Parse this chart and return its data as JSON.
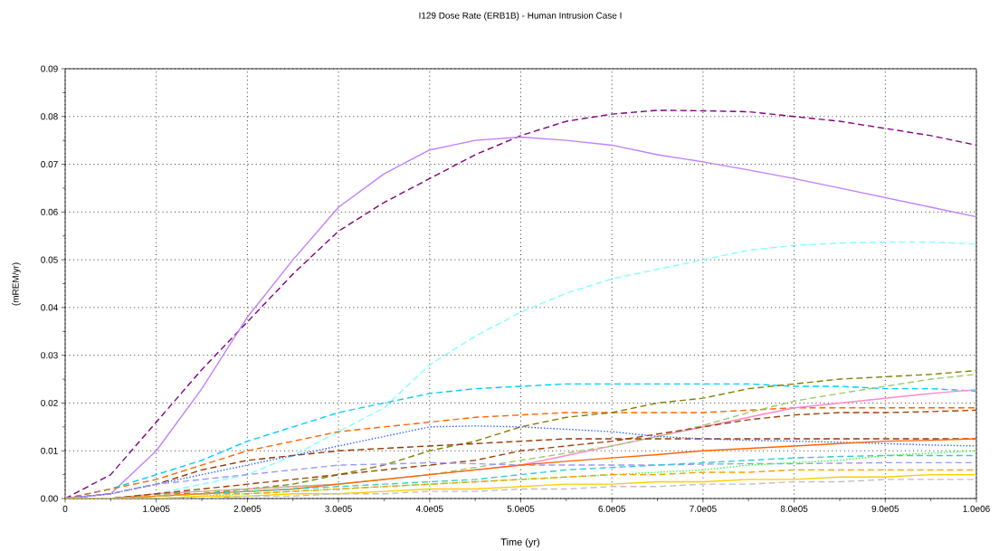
{
  "chart_data": {
    "type": "line",
    "title": "I129 Dose Rate (ERB1B)  -  Human Intrusion Case I",
    "xlabel": "Time (yr)",
    "ylabel": "(mREM/yr)",
    "x": [
      0,
      50000,
      100000,
      150000,
      200000,
      250000,
      300000,
      350000,
      400000,
      450000,
      500000,
      550000,
      600000,
      650000,
      700000,
      750000,
      800000,
      850000,
      900000,
      950000,
      1000000
    ],
    "xlim": [
      0,
      1000000
    ],
    "ylim": [
      0,
      0.09
    ],
    "xticks": [
      0,
      {
        "value": 100000,
        "label": "1.0e05"
      },
      {
        "value": 200000,
        "label": "2.0e05"
      },
      {
        "value": 300000,
        "label": "3.0e05"
      },
      {
        "value": 400000,
        "label": "4.0e05"
      },
      {
        "value": 500000,
        "label": "5.0e05"
      },
      {
        "value": 600000,
        "label": "6.0e05"
      },
      {
        "value": 700000,
        "label": "7.0e05"
      },
      {
        "value": 800000,
        "label": "8.0e05"
      },
      {
        "value": 900000,
        "label": "9.0e05"
      },
      {
        "value": 1000000,
        "label": "1.0e06"
      }
    ],
    "yticks": [
      {
        "value": 0,
        "label": "0.00"
      },
      {
        "value": 0.01,
        "label": "0.01"
      },
      {
        "value": 0.02,
        "label": "0.02"
      },
      {
        "value": 0.03,
        "label": "0.03"
      },
      {
        "value": 0.04,
        "label": "0.04"
      },
      {
        "value": 0.05,
        "label": "0.05"
      },
      {
        "value": 0.06,
        "label": "0.06"
      },
      {
        "value": 0.07,
        "label": "0.07"
      },
      {
        "value": 0.08,
        "label": "0.08"
      },
      {
        "value": 0.09,
        "label": "0.09"
      }
    ],
    "grid": true,
    "marker": "none",
    "series": [
      {
        "color": "#800080",
        "line_style": "dashed",
        "values": [
          0,
          0.005,
          0.016,
          0.027,
          0.037,
          0.047,
          0.056,
          0.062,
          0.067,
          0.072,
          0.076,
          0.079,
          0.0805,
          0.0813,
          0.0812,
          0.081,
          0.08,
          0.079,
          0.0775,
          0.076,
          0.074
        ]
      },
      {
        "color": "#bf80ff",
        "line_style": "solid",
        "values": [
          0,
          0.001,
          0.01,
          0.023,
          0.038,
          0.05,
          0.061,
          0.068,
          0.073,
          0.075,
          0.0757,
          0.075,
          0.074,
          0.072,
          0.0705,
          0.0688,
          0.067,
          0.065,
          0.063,
          0.061,
          0.059
        ]
      },
      {
        "color": "#80ffff",
        "line_style": "dashed",
        "values": [
          0,
          0,
          0.001,
          0.003,
          0.005,
          0.009,
          0.014,
          0.019,
          0.028,
          0.034,
          0.039,
          0.043,
          0.046,
          0.048,
          0.05,
          0.052,
          0.053,
          0.0535,
          0.0537,
          0.0537,
          0.0533
        ]
      },
      {
        "color": "#00ccff",
        "line_style": "dashed",
        "values": [
          0,
          0.002,
          0.005,
          0.008,
          0.012,
          0.015,
          0.018,
          0.02,
          0.022,
          0.023,
          0.0235,
          0.024,
          0.024,
          0.024,
          0.024,
          0.024,
          0.0235,
          0.0235,
          0.023,
          0.023,
          0.0225
        ]
      },
      {
        "color": "#ff6600",
        "line_style": "dashed",
        "values": [
          0,
          0.002,
          0.004,
          0.007,
          0.01,
          0.012,
          0.014,
          0.015,
          0.016,
          0.017,
          0.0175,
          0.018,
          0.018,
          0.018,
          0.018,
          0.0185,
          0.019,
          0.019,
          0.019,
          0.019,
          0.019
        ]
      },
      {
        "color": "#808000",
        "line_style": "dashed",
        "values": [
          0,
          0,
          0.001,
          0.001,
          0.002,
          0.003,
          0.005,
          0.007,
          0.01,
          0.012,
          0.015,
          0.017,
          0.018,
          0.02,
          0.021,
          0.023,
          0.024,
          0.025,
          0.0255,
          0.026,
          0.0268
        ]
      },
      {
        "color": "#ff88cc",
        "line_style": "solid",
        "values": [
          0,
          0,
          0.001,
          0.0015,
          0.002,
          0.0025,
          0.003,
          0.004,
          0.005,
          0.006,
          0.007,
          0.009,
          0.011,
          0.013,
          0.015,
          0.017,
          0.019,
          0.02,
          0.021,
          0.022,
          0.0228
        ]
      },
      {
        "color": "#99cc66",
        "line_style": "dashed",
        "values": [
          0,
          0,
          0.001,
          0.0015,
          0.002,
          0.0025,
          0.003,
          0.004,
          0.005,
          0.0065,
          0.008,
          0.0095,
          0.011,
          0.013,
          0.0153,
          0.018,
          0.0204,
          0.022,
          0.0235,
          0.025,
          0.026
        ]
      },
      {
        "color": "#993300",
        "line_style": "dashed",
        "values": [
          0,
          0.001,
          0.003,
          0.006,
          0.008,
          0.009,
          0.01,
          0.0105,
          0.011,
          0.0115,
          0.012,
          0.0125,
          0.0125,
          0.0125,
          0.0125,
          0.0125,
          0.0125,
          0.0125,
          0.0125,
          0.0125,
          0.0125
        ]
      },
      {
        "color": "#a0400a",
        "line_style": "dashed",
        "values": [
          0,
          0,
          0.001,
          0.002,
          0.003,
          0.004,
          0.005,
          0.006,
          0.007,
          0.008,
          0.01,
          0.011,
          0.012,
          0.0135,
          0.015,
          0.0165,
          0.0175,
          0.018,
          0.018,
          0.0182,
          0.0185
        ]
      },
      {
        "color": "#3366ff",
        "line_style": "dotted",
        "values": [
          0,
          0.001,
          0.003,
          0.005,
          0.007,
          0.009,
          0.011,
          0.013,
          0.015,
          0.0152,
          0.015,
          0.0145,
          0.014,
          0.013,
          0.0125,
          0.0122,
          0.012,
          0.0118,
          0.0115,
          0.0112,
          0.011
        ]
      },
      {
        "color": "#9999ff",
        "line_style": "dashed",
        "values": [
          0,
          0.001,
          0.003,
          0.004,
          0.005,
          0.006,
          0.007,
          0.0072,
          0.0075,
          0.0073,
          0.007,
          0.007,
          0.007,
          0.007,
          0.0072,
          0.0073,
          0.0073,
          0.0074,
          0.0075,
          0.0075,
          0.0075
        ]
      },
      {
        "color": "#ff6600",
        "line_style": "solid",
        "values": [
          0,
          0,
          0.0005,
          0.001,
          0.0015,
          0.002,
          0.003,
          0.004,
          0.005,
          0.006,
          0.007,
          0.0078,
          0.0085,
          0.0092,
          0.01,
          0.0105,
          0.011,
          0.0115,
          0.012,
          0.0122,
          0.0125
        ]
      },
      {
        "color": "#33cccc",
        "line_style": "dashed",
        "values": [
          0,
          0,
          0.0005,
          0.001,
          0.0015,
          0.002,
          0.0025,
          0.003,
          0.0035,
          0.004,
          0.005,
          0.006,
          0.0065,
          0.007,
          0.0075,
          0.008,
          0.0085,
          0.0088,
          0.009,
          0.009,
          0.009
        ]
      },
      {
        "color": "#33ff33",
        "line_style": "dotted",
        "values": [
          null,
          null,
          0,
          0.0005,
          0.001,
          0.0015,
          0.002,
          0.0025,
          0.003,
          0.0035,
          0.004,
          0.0045,
          0.005,
          0.0055,
          0.006,
          0.007,
          0.0075,
          0.008,
          0.009,
          0.0095,
          0.01
        ]
      },
      {
        "color": "#ff9900",
        "line_style": "dashed",
        "values": [
          0,
          0,
          0.0005,
          0.001,
          0.001,
          0.0015,
          0.002,
          0.0025,
          0.003,
          0.0035,
          0.004,
          0.0045,
          0.005,
          0.005,
          0.0055,
          0.0055,
          0.006,
          0.006,
          0.006,
          0.006,
          0.006
        ]
      },
      {
        "color": "#ffcc00",
        "line_style": "solid",
        "values": [
          0,
          0,
          0,
          0.0005,
          0.0005,
          0.001,
          0.001,
          0.0015,
          0.002,
          0.002,
          0.0025,
          0.003,
          0.003,
          0.0035,
          0.0035,
          0.004,
          0.004,
          0.0045,
          0.0045,
          0.005,
          0.005
        ]
      },
      {
        "color": "#c0c0c0",
        "line_style": "dashed",
        "values": [
          0,
          0,
          0,
          0,
          0.0005,
          0.0005,
          0.001,
          0.001,
          0.0015,
          0.0015,
          0.002,
          0.002,
          0.0025,
          0.0025,
          0.003,
          0.003,
          0.0035,
          0.0035,
          0.004,
          0.004,
          0.004
        ]
      }
    ]
  }
}
